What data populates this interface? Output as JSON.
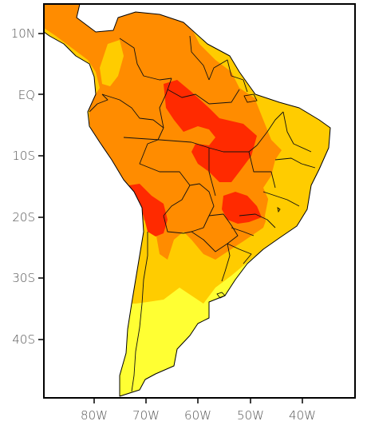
{
  "map": {
    "lat_labels": [
      "10N",
      "EQ",
      "10S",
      "20S",
      "30S",
      "40S"
    ],
    "lon_labels": [
      "80W",
      "70W",
      "60W",
      "50W",
      "40W"
    ],
    "colors": {
      "water": "#ffffff",
      "pale_yellow": "#ffff33",
      "gold": "#ffcc00",
      "orange": "#ff8c00",
      "red": "#ff2a00",
      "border": "#000000"
    }
  }
}
